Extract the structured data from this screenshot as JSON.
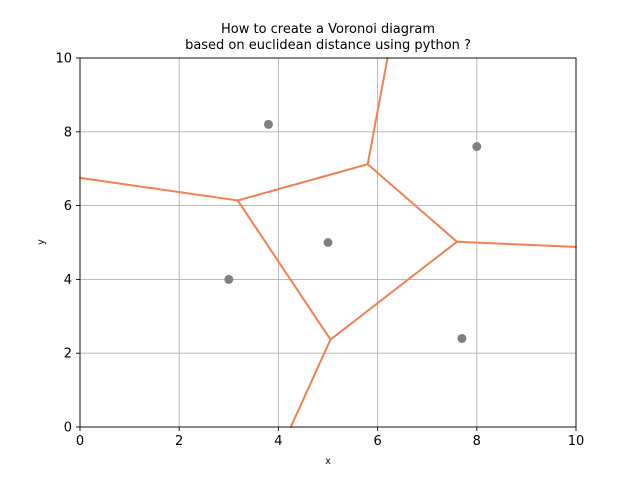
{
  "chart_data": {
    "type": "scatter",
    "title_line1": "How to create a Voronoi diagram",
    "title_line2": "based on euclidean distance using python ?",
    "xlabel": "x",
    "ylabel": "y",
    "xlim": [
      0,
      10
    ],
    "ylim": [
      0,
      10
    ],
    "xticks": [
      0,
      2,
      4,
      6,
      8,
      10
    ],
    "yticks": [
      0,
      2,
      4,
      6,
      8,
      10
    ],
    "grid": true,
    "points": [
      {
        "x": 3.8,
        "y": 8.2
      },
      {
        "x": 8.0,
        "y": 7.6
      },
      {
        "x": 5.0,
        "y": 5.0
      },
      {
        "x": 3.0,
        "y": 4.0
      },
      {
        "x": 7.7,
        "y": 2.4
      }
    ],
    "voronoi_edges": [
      {
        "from": [
          0.0,
          6.75
        ],
        "to": [
          3.18,
          6.14
        ]
      },
      {
        "from": [
          3.18,
          6.14
        ],
        "to": [
          5.8,
          7.12
        ]
      },
      {
        "from": [
          5.8,
          7.12
        ],
        "to": [
          6.2,
          10.0
        ]
      },
      {
        "from": [
          5.8,
          7.12
        ],
        "to": [
          7.6,
          5.02
        ]
      },
      {
        "from": [
          7.6,
          5.02
        ],
        "to": [
          10.0,
          4.88
        ]
      },
      {
        "from": [
          7.6,
          5.02
        ],
        "to": [
          5.05,
          2.37
        ]
      },
      {
        "from": [
          3.18,
          6.14
        ],
        "to": [
          5.05,
          2.37
        ]
      },
      {
        "from": [
          5.05,
          2.37
        ],
        "to": [
          4.25,
          0.0
        ]
      }
    ],
    "colors": {
      "points": "#808080",
      "edges": "#f28050",
      "grid": "#b0b0b0",
      "axes": "#000000"
    }
  }
}
